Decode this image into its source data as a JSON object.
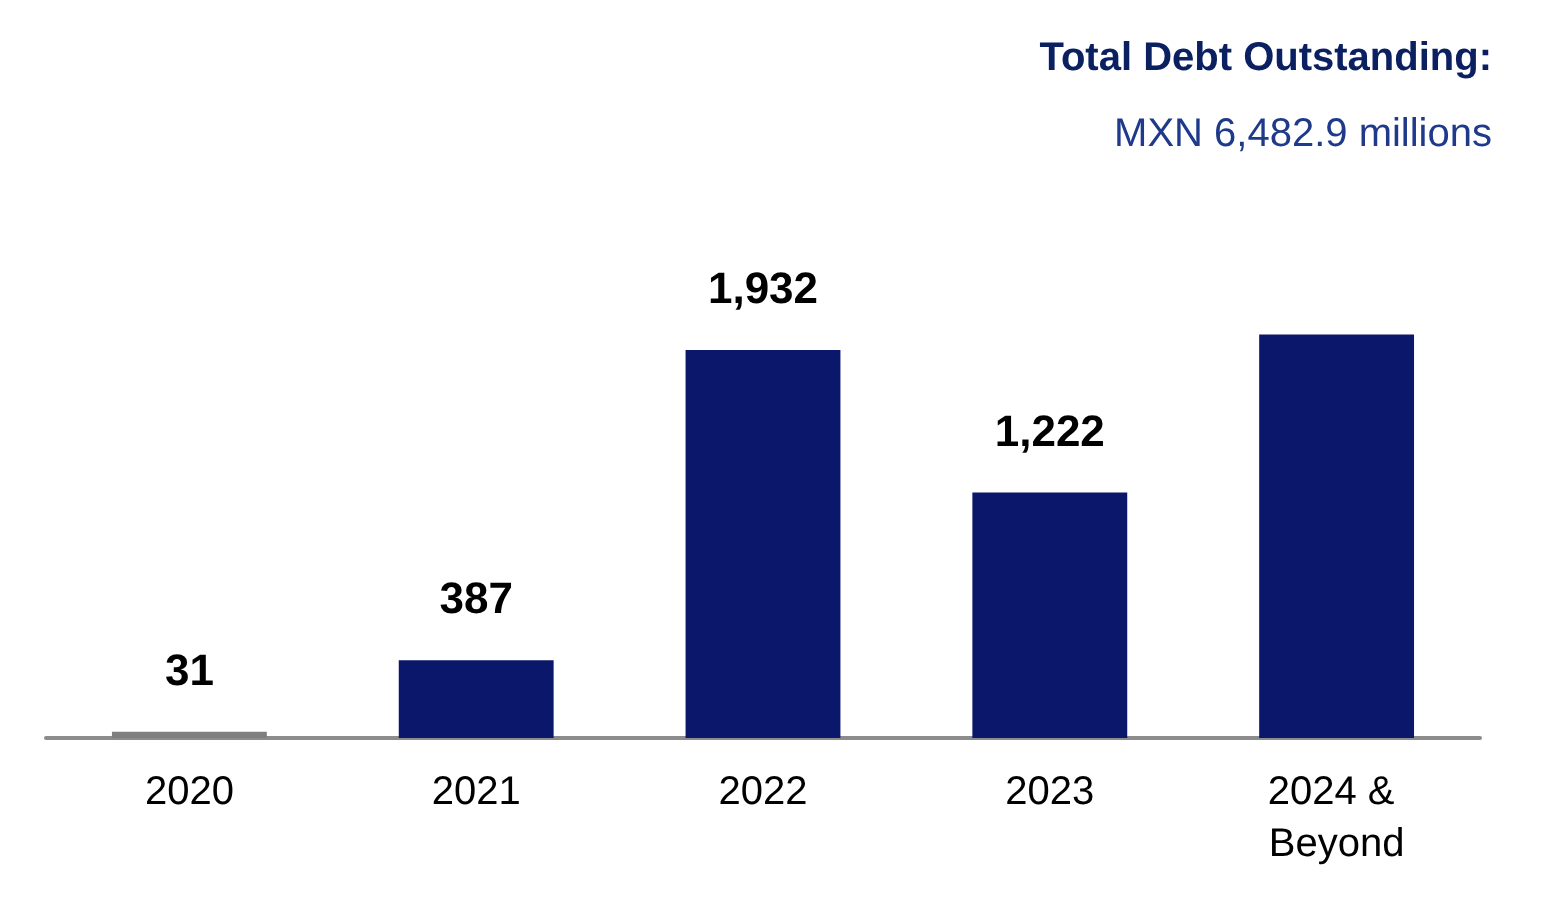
{
  "chart_data": {
    "type": "bar",
    "title": "Total Debt Outstanding:",
    "subtitle": "MXN 6,482.9 millions",
    "categories": [
      "2020",
      "2021",
      "2022",
      "2023",
      "2024 & Beyond"
    ],
    "values": [
      31,
      387,
      1932,
      1222,
      2010
    ],
    "colors": [
      "#7f7f7f",
      "#0b176b",
      "#0b176b",
      "#0b176b",
      "#0b176b"
    ],
    "value_labels": [
      "31",
      "387",
      "1,932",
      "1,222",
      null
    ],
    "data_labels": false
  }
}
